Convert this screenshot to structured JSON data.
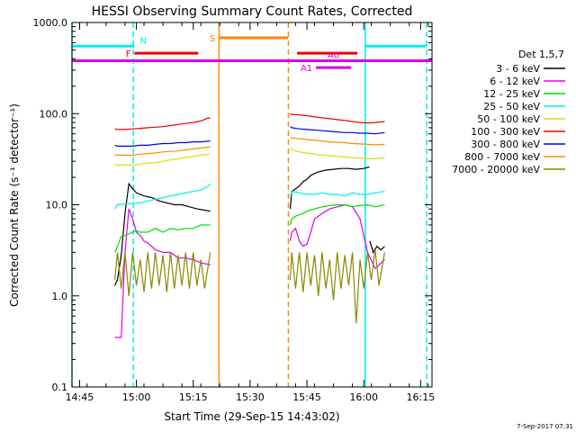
{
  "chart_data": {
    "type": "line",
    "title": "HESSI Observing Summary Count Rates, Corrected",
    "xlabel": "Start Time (29-Sep-15 14:43:02)",
    "ylabel": "Corrected Count Rate (s⁻¹ detector⁻¹)",
    "y_scale": "log",
    "ylim": [
      0.1,
      1000
    ],
    "xlim_minutes": [
      0,
      95
    ],
    "x_ticks": [
      "14:45",
      "15:00",
      "15:15",
      "15:30",
      "15:45",
      "16:00",
      "16:15"
    ],
    "y_ticks": [
      "0.1",
      "1.0",
      "10.0",
      "100.0",
      "1000.0"
    ],
    "legend_title": "Det 1,5,7",
    "legend_position": "right",
    "footer": "7-Sep-2017 07:31",
    "series": [
      {
        "name": "3 - 6 keV",
        "color": "#000000",
        "segments": [
          {
            "x": [
              11.3,
              12,
              13,
              14,
              15,
              16,
              17,
              19,
              21,
              23,
              25,
              27,
              29,
              31,
              33,
              36.5
            ],
            "y": [
              1.3,
              1.5,
              2.8,
              8,
              17,
              15,
              13.5,
              12.5,
              12,
              11,
              10.5,
              10,
              10,
              9.5,
              9,
              8.5
            ]
          },
          {
            "x": [
              57.6,
              58,
              59,
              60,
              61,
              62,
              63,
              64,
              65,
              67,
              69,
              71,
              73,
              75,
              77,
              78.5
            ],
            "y": [
              9,
              14,
              15,
              16,
              18,
              19,
              21,
              22,
              23,
              24,
              24.5,
              25,
              25,
              24.5,
              25,
              26
            ]
          },
          {
            "x": [
              78.6,
              79.5,
              80.5,
              81.5,
              82.5
            ],
            "y": [
              4,
              3,
              3.5,
              3.2,
              3.5
            ]
          }
        ]
      },
      {
        "name": "6 - 12 keV",
        "color": "#dd00dd",
        "segments": [
          {
            "x": [
              11.3,
              12,
              13,
              14,
              15,
              16,
              17,
              18,
              19,
              20,
              21,
              22,
              24,
              26,
              28,
              30,
              32,
              34,
              36.5
            ],
            "y": [
              0.35,
              0.35,
              0.35,
              3,
              9,
              7,
              5,
              4.6,
              4,
              3.8,
              3.5,
              3.2,
              3,
              3,
              2.6,
              2.6,
              2.5,
              2.3,
              2.2
            ]
          },
          {
            "x": [
              57.6,
              58,
              59,
              60,
              61,
              62,
              63,
              64,
              66,
              68,
              70,
              72,
              74,
              76,
              78,
              80,
              82.5
            ],
            "y": [
              4,
              5,
              5.5,
              4,
              3.5,
              3.7,
              5,
              7,
              8,
              9,
              9.5,
              10,
              9.5,
              7,
              3,
              2,
              2.5
            ]
          }
        ]
      },
      {
        "name": "12 - 25 keV",
        "color": "#00dd00",
        "segments": [
          {
            "x": [
              11.3,
              12,
              13,
              14,
              15,
              16,
              17,
              18,
              20,
              22,
              24,
              26,
              28,
              30,
              32,
              34,
              36.5
            ],
            "y": [
              3,
              3.5,
              4.5,
              4.6,
              4.8,
              5,
              5.2,
              5,
              5,
              5.5,
              5,
              5.5,
              5.3,
              5.5,
              5.5,
              6,
              6
            ]
          },
          {
            "x": [
              57.6,
              58,
              59,
              60,
              61,
              62,
              63,
              64,
              66,
              68,
              70,
              72,
              74,
              76,
              78,
              80,
              82.5
            ],
            "y": [
              6,
              7,
              7.5,
              7.8,
              8,
              8.5,
              8.8,
              9,
              9.5,
              9.8,
              10,
              10,
              9.5,
              9.8,
              10,
              9.5,
              10
            ]
          }
        ]
      },
      {
        "name": "25 - 50 keV",
        "color": "#00eeee",
        "segments": [
          {
            "x": [
              11.3,
              12,
              14,
              16,
              18,
              20,
              22,
              24,
              26,
              28,
              30,
              32,
              34,
              36,
              36.5
            ],
            "y": [
              9,
              10,
              10.2,
              10.3,
              10.5,
              11,
              11.5,
              12,
              12.5,
              13,
              13.5,
              14,
              14.5,
              16,
              17
            ]
          },
          {
            "x": [
              57.6,
              58,
              60,
              62,
              64,
              66,
              68,
              70,
              72,
              74,
              76,
              78,
              80,
              82.5
            ],
            "y": [
              12,
              14,
              13.5,
              13,
              13,
              13.5,
              13,
              13,
              12.5,
              13.5,
              13,
              13,
              13.5,
              14
            ]
          }
        ]
      },
      {
        "name": "50 - 100 keV",
        "color": "#dddd00",
        "segments": [
          {
            "x": [
              11.3,
              12,
              14,
              16,
              18,
              20,
              22,
              24,
              26,
              28,
              30,
              32,
              34,
              36.5
            ],
            "y": [
              28,
              27,
              27.5,
              27,
              28,
              28.5,
              29,
              30,
              31,
              32,
              33,
              34,
              35,
              36
            ]
          },
          {
            "x": [
              57.6,
              58,
              60,
              62,
              64,
              66,
              68,
              70,
              72,
              74,
              76,
              78,
              80,
              82.5
            ],
            "y": [
              42,
              40,
              38,
              37,
              36,
              35,
              34.5,
              34,
              33.5,
              33,
              32.5,
              32,
              32,
              33
            ]
          }
        ]
      },
      {
        "name": "100 - 300 keV",
        "color": "#ee0000",
        "segments": [
          {
            "x": [
              11.3,
              12,
              14,
              16,
              18,
              20,
              22,
              24,
              26,
              28,
              30,
              32,
              34,
              36,
              36.5
            ],
            "y": [
              68,
              67,
              67,
              68,
              69,
              70,
              71,
              72,
              74,
              76,
              78,
              80,
              83,
              90,
              88
            ]
          },
          {
            "x": [
              57.6,
              58,
              60,
              62,
              64,
              66,
              68,
              70,
              72,
              74,
              76,
              78,
              80,
              82.5
            ],
            "y": [
              100,
              98,
              97,
              95,
              92,
              90,
              88,
              86,
              84,
              82,
              80,
              79,
              80,
              82
            ]
          }
        ]
      },
      {
        "name": "300 - 800 keV",
        "color": "#0000dd",
        "segments": [
          {
            "x": [
              11.3,
              12,
              14,
              16,
              18,
              20,
              22,
              24,
              26,
              28,
              30,
              32,
              34,
              36.5
            ],
            "y": [
              45,
              44,
              44,
              44,
              45,
              45,
              46,
              47,
              47,
              48,
              48,
              49,
              49,
              50
            ]
          },
          {
            "x": [
              57.6,
              58,
              60,
              62,
              64,
              66,
              68,
              70,
              72,
              74,
              76,
              78,
              80,
              82.5
            ],
            "y": [
              72,
              70,
              68,
              67,
              66,
              65,
              64,
              63,
              62,
              62,
              61,
              61,
              60,
              62
            ]
          }
        ]
      },
      {
        "name": "800 - 7000 keV",
        "color": "#ff8800",
        "segments": [
          {
            "x": [
              11.3,
              12,
              14,
              16,
              18,
              20,
              22,
              24,
              26,
              28,
              30,
              32,
              34,
              36.5
            ],
            "y": [
              35,
              35,
              35,
              35,
              36,
              36.5,
              37,
              38,
              38.5,
              39,
              40,
              41,
              42,
              43
            ]
          },
          {
            "x": [
              57.6,
              58,
              60,
              62,
              64,
              66,
              68,
              70,
              72,
              74,
              76,
              78,
              80,
              82.5
            ],
            "y": [
              55,
              54,
              53,
              52,
              51,
              50,
              49,
              48.5,
              48,
              47,
              46.5,
              46,
              45.5,
              46
            ]
          }
        ]
      },
      {
        "name": "7000 - 20000 keV",
        "color": "#888800",
        "segments": [
          {
            "x": [
              11.3,
              12,
              13,
              14,
              15,
              16,
              17,
              18,
              19,
              20,
              21,
              22,
              23,
              24,
              25,
              26,
              27,
              28,
              29,
              30,
              31,
              32,
              33,
              34,
              35,
              36.5
            ],
            "y": [
              1.5,
              3,
              1.2,
              3,
              1,
              3,
              1.3,
              2.5,
              1.1,
              3,
              1.2,
              3,
              1.3,
              2.8,
              1.1,
              3,
              1.2,
              2.8,
              1.3,
              3,
              1.2,
              3,
              1.3,
              2.5,
              1.2,
              3
            ]
          },
          {
            "x": [
              57.6,
              58,
              59,
              60,
              61,
              62,
              63,
              64,
              65,
              66,
              67,
              68,
              69,
              70,
              71,
              72,
              73,
              74,
              75,
              76,
              77,
              78,
              79,
              80,
              81,
              82.5
            ],
            "y": [
              1.5,
              3,
              1.2,
              3,
              1.1,
              3,
              1.3,
              2.8,
              1,
              3,
              1.2,
              2.5,
              0.9,
              3,
              1.2,
              2.8,
              1.3,
              3,
              0.5,
              2.5,
              1.2,
              3,
              1.5,
              3.2,
              1.3,
              3
            ]
          }
        ]
      }
    ],
    "indicator_bars": [
      {
        "label": "N",
        "color": "#00eeee",
        "y": 550,
        "segments": [
          [
            0,
            16.5
          ],
          [
            77.4,
            93.5
          ]
        ]
      },
      {
        "label": "F",
        "color": "#ee0000",
        "y": 460,
        "segments": [
          [
            16.5,
            33.3
          ],
          [
            59.4,
            75.3
          ]
        ]
      },
      {
        "label": "S",
        "color": "#ff8800",
        "y": 680,
        "segments": [
          [
            38.8,
            57
          ]
        ]
      },
      {
        "label": "A0",
        "color": "#dd00dd",
        "y": 380,
        "segments": [
          [
            0,
            95
          ]
        ]
      },
      {
        "label": "A1",
        "color": "#dd00dd",
        "y": 320,
        "segments": [
          [
            64.4,
            73.7
          ]
        ]
      }
    ],
    "vertical_lines": [
      {
        "x": 0,
        "color": "#00eeee",
        "style": "solid"
      },
      {
        "x": 16.2,
        "color": "#00eeee",
        "style": "dashed"
      },
      {
        "x": 38.8,
        "color": "#ff8800",
        "style": "solid"
      },
      {
        "x": 57.1,
        "color": "#ff8800",
        "style": "dashed"
      },
      {
        "x": 77.4,
        "color": "#00eeee",
        "style": "solid"
      },
      {
        "x": 93.6,
        "color": "#00eeee",
        "style": "dashed"
      }
    ]
  }
}
